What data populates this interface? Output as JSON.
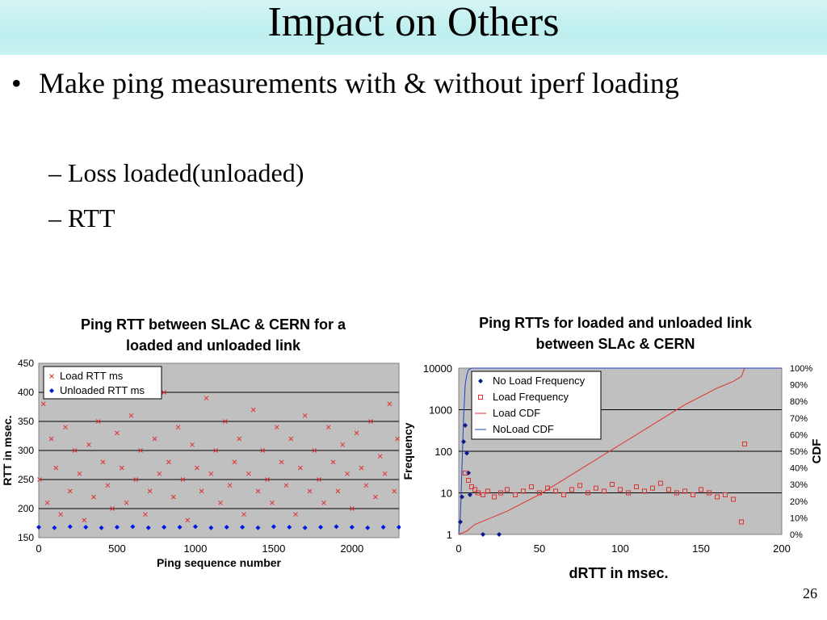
{
  "slide": {
    "title": "Impact on Others",
    "bullet_marker": "•",
    "bullet": "Make ping measurements with & without iperf loading",
    "subbullets": [
      "– Loss loaded(unloaded)",
      "– RTT"
    ],
    "page_number": "26"
  },
  "chart_data": [
    {
      "type": "scatter",
      "title": "Ping RTT between SLAC & CERN for a loaded and unloaded link",
      "xlabel": "Ping sequence number",
      "ylabel": "RTT in msec.",
      "xlim": [
        0,
        2300
      ],
      "ylim": [
        150,
        450
      ],
      "xticks": [
        0,
        500,
        1000,
        1500,
        2000
      ],
      "yticks": [
        150,
        200,
        250,
        300,
        350,
        400,
        450
      ],
      "grid": true,
      "legend_position": "top-left",
      "series": [
        {
          "name": "Load RTT ms",
          "marker": "x",
          "color": "#e03030",
          "x": [
            5,
            30,
            55,
            80,
            110,
            140,
            170,
            200,
            230,
            260,
            290,
            320,
            350,
            380,
            410,
            440,
            470,
            500,
            530,
            560,
            590,
            620,
            650,
            680,
            710,
            740,
            770,
            800,
            830,
            860,
            890,
            920,
            950,
            980,
            1010,
            1040,
            1070,
            1100,
            1130,
            1160,
            1190,
            1220,
            1250,
            1280,
            1310,
            1340,
            1370,
            1400,
            1430,
            1460,
            1490,
            1520,
            1550,
            1580,
            1610,
            1640,
            1670,
            1700,
            1730,
            1760,
            1790,
            1820,
            1850,
            1880,
            1910,
            1940,
            1970,
            2000,
            2030,
            2060,
            2090,
            2120,
            2150,
            2180,
            2210,
            2240,
            2270,
            2290
          ],
          "y": [
            250,
            380,
            210,
            320,
            270,
            190,
            340,
            230,
            300,
            260,
            180,
            310,
            220,
            350,
            280,
            240,
            200,
            330,
            270,
            210,
            360,
            250,
            300,
            190,
            230,
            320,
            260,
            400,
            280,
            220,
            340,
            250,
            180,
            310,
            270,
            230,
            390,
            260,
            300,
            210,
            350,
            240,
            280,
            320,
            190,
            260,
            370,
            230,
            300,
            250,
            210,
            340,
            280,
            240,
            320,
            190,
            270,
            360,
            230,
            300,
            250,
            210,
            340,
            280,
            230,
            310,
            260,
            200,
            330,
            270,
            240,
            350,
            220,
            290,
            260,
            380,
            230,
            320
          ]
        },
        {
          "name": "Unloaded RTT ms",
          "marker": "diamond",
          "color": "#0018e6",
          "x": [
            0,
            100,
            200,
            300,
            400,
            500,
            600,
            700,
            800,
            900,
            1000,
            1100,
            1200,
            1300,
            1400,
            1500,
            1600,
            1700,
            1800,
            1900,
            2000,
            2100,
            2200,
            2300
          ],
          "y": [
            168,
            167,
            169,
            168,
            167,
            168,
            169,
            167,
            168,
            168,
            169,
            167,
            168,
            168,
            167,
            169,
            168,
            167,
            168,
            169,
            168,
            167,
            168,
            168
          ]
        }
      ]
    },
    {
      "type": "scatter",
      "title": "Ping RTTs for loaded and unloaded link between SLAc & CERN",
      "xlabel": "dRTT in msec.",
      "ylabel": "Frequency",
      "y2label": "CDF",
      "xlim": [
        0,
        200
      ],
      "ylim": [
        1,
        10000
      ],
      "yscale": "log",
      "xticks": [
        0,
        50,
        100,
        150,
        200
      ],
      "yticks": [
        1,
        10,
        100,
        1000,
        10000
      ],
      "ytick_labels": [
        "1",
        "10",
        "100",
        "1000",
        "10000"
      ],
      "y2ticks": [
        "0%",
        "10%",
        "20%",
        "30%",
        "40%",
        "50%",
        "60%",
        "70%",
        "80%",
        "90%",
        "100%"
      ],
      "grid": true,
      "legend_position": "top-left",
      "series": [
        {
          "name": "No Load Frequency",
          "marker": "diamond",
          "color": "#0a1a8c",
          "x": [
            1,
            2,
            3,
            4,
            5,
            6,
            7,
            15,
            25
          ],
          "y": [
            2,
            8,
            170,
            420,
            90,
            30,
            9,
            1,
            1
          ]
        },
        {
          "name": "Load Frequency",
          "marker": "square-open",
          "color": "#e03030",
          "x": [
            4,
            6,
            8,
            10,
            12,
            15,
            18,
            22,
            26,
            30,
            35,
            40,
            45,
            50,
            55,
            60,
            65,
            70,
            75,
            80,
            85,
            90,
            95,
            100,
            105,
            110,
            115,
            120,
            125,
            130,
            135,
            140,
            145,
            150,
            155,
            160,
            165,
            170,
            175,
            177
          ],
          "y": [
            30,
            20,
            14,
            12,
            10,
            9,
            11,
            8,
            10,
            12,
            9,
            11,
            14,
            10,
            13,
            11,
            9,
            12,
            15,
            10,
            13,
            11,
            16,
            12,
            10,
            14,
            11,
            13,
            17,
            12,
            10,
            11,
            9,
            12,
            10,
            8,
            9,
            7,
            2,
            150
          ]
        },
        {
          "name": "Load CDF",
          "color": "#e03030",
          "line": true,
          "x": [
            0,
            5,
            10,
            20,
            30,
            40,
            50,
            60,
            70,
            80,
            90,
            100,
            110,
            120,
            130,
            140,
            150,
            160,
            170,
            175,
            177
          ],
          "y": [
            0,
            2,
            6,
            10,
            14,
            19,
            24,
            30,
            36,
            42,
            48,
            54,
            60,
            66,
            72,
            78,
            83,
            88,
            92,
            95,
            100
          ]
        },
        {
          "name": "NoLoad CDF",
          "color": "#2040c0",
          "line": true,
          "x": [
            0,
            1,
            2,
            3,
            4,
            5,
            6,
            8,
            200
          ],
          "y": [
            0,
            10,
            40,
            70,
            90,
            96,
            99,
            100,
            100
          ]
        }
      ]
    }
  ]
}
